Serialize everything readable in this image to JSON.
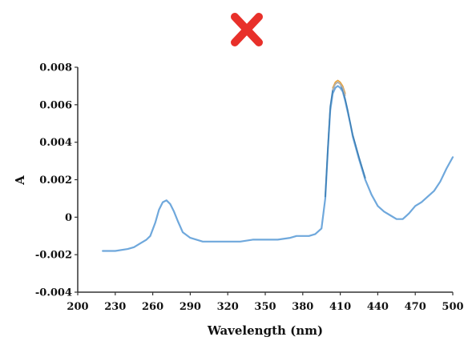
{
  "header": {
    "mark_icon": "red-x-icon",
    "mark_color": "#e8302a"
  },
  "chart_data": {
    "type": "line",
    "title": "",
    "xlabel": "Wavelength (nm)",
    "ylabel": "A",
    "xlim": [
      200,
      500
    ],
    "ylim": [
      -0.004,
      0.008
    ],
    "xticks": [
      200,
      230,
      260,
      290,
      320,
      350,
      380,
      410,
      440,
      470,
      500
    ],
    "yticks": [
      -0.004,
      -0.002,
      0,
      0.002,
      0.004,
      0.006,
      0.008
    ],
    "ytick_labels": [
      "-0.004",
      "-0.002",
      "0",
      "0.002",
      "0.004",
      "0.006",
      "0.008"
    ],
    "grid": false,
    "legend": "none",
    "series": [
      {
        "color": "#6fa8dc",
        "x": [
          220,
          230,
          240,
          245,
          250,
          255,
          258,
          262,
          265,
          268,
          271,
          274,
          277,
          280,
          284,
          290,
          300,
          310,
          320,
          330,
          340,
          350,
          360,
          370,
          375,
          380,
          385,
          390,
          395,
          398,
          400,
          402,
          404,
          406,
          408,
          410,
          412,
          414,
          416,
          418,
          420,
          425,
          430,
          435,
          440,
          445,
          450,
          455,
          460,
          465,
          470,
          475,
          480,
          485,
          490,
          495,
          500
        ],
        "y": [
          -0.0018,
          -0.0018,
          -0.0017,
          -0.0016,
          -0.0014,
          -0.0012,
          -0.001,
          -0.0003,
          0.0004,
          0.0008,
          0.0009,
          0.0007,
          0.0003,
          -0.0002,
          -0.0008,
          -0.0011,
          -0.0013,
          -0.0013,
          -0.0013,
          -0.0013,
          -0.0012,
          -0.0012,
          -0.0012,
          -0.0011,
          -0.001,
          -0.001,
          -0.001,
          -0.0009,
          -0.0006,
          0.001,
          0.0035,
          0.0057,
          0.0066,
          0.0069,
          0.007,
          0.0069,
          0.0067,
          0.0062,
          0.0056,
          0.005,
          0.0043,
          0.0031,
          0.002,
          0.0012,
          0.0006,
          0.0003,
          0.0001,
          -0.0001,
          -0.0001,
          0.0002,
          0.0006,
          0.0008,
          0.0011,
          0.0014,
          0.0019,
          0.0026,
          0.0032
        ]
      },
      {
        "color": "#3d7fb5",
        "x": [
          398,
          400,
          402,
          404,
          406,
          408,
          410,
          412,
          414,
          416,
          418,
          420,
          425,
          430
        ],
        "y": [
          0.0011,
          0.0036,
          0.0059,
          0.0068,
          0.0071,
          0.0072,
          0.0071,
          0.0068,
          0.0063,
          0.0057,
          0.005,
          0.0044,
          0.0032,
          0.0021
        ]
      },
      {
        "color": "#e6a23c",
        "x": [
          404,
          406,
          408,
          410,
          412,
          414
        ],
        "y": [
          0.0069,
          0.0072,
          0.0073,
          0.0072,
          0.007,
          0.0066
        ]
      },
      {
        "color": "#b0b0b0",
        "x": [
          404,
          406,
          408,
          410,
          412,
          414
        ],
        "y": [
          0.0068,
          0.0071,
          0.0072,
          0.0071,
          0.0069,
          0.0065
        ]
      }
    ]
  }
}
